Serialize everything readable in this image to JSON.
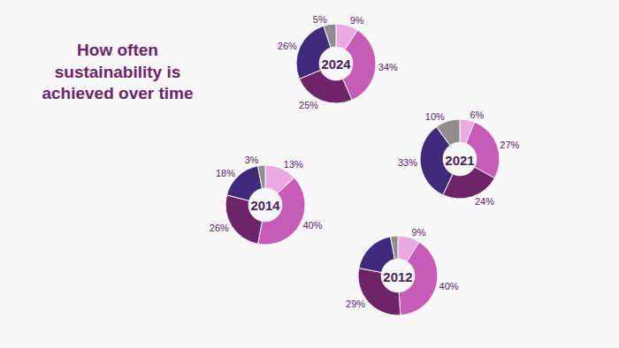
{
  "chart_data": {
    "type": "pie",
    "title": "How often sustainability is achieved over time",
    "data_labels": true,
    "colors": [
      "#eaa9e0",
      "#c65bb8",
      "#6e2468",
      "#3f2a7c",
      "#8e8e8e"
    ],
    "series": [
      {
        "name": "2024",
        "values": [
          9,
          34,
          25,
          26,
          5
        ],
        "value_labels": [
          "9%",
          "34%",
          "25%",
          "26%",
          "5%"
        ]
      },
      {
        "name": "2021",
        "values": [
          6,
          27,
          24,
          33,
          10
        ],
        "value_labels": [
          "6%",
          "27%",
          "24%",
          "33%",
          "10%"
        ]
      },
      {
        "name": "2014",
        "values": [
          13,
          40,
          26,
          18,
          3
        ],
        "value_labels": [
          "13%",
          "40%",
          "26%",
          "18%",
          "3%"
        ]
      },
      {
        "name": "2012",
        "values": [
          9,
          40,
          29,
          19,
          3
        ],
        "value_labels": [
          "9%",
          "40%",
          "29%",
          null,
          null
        ]
      }
    ]
  }
}
